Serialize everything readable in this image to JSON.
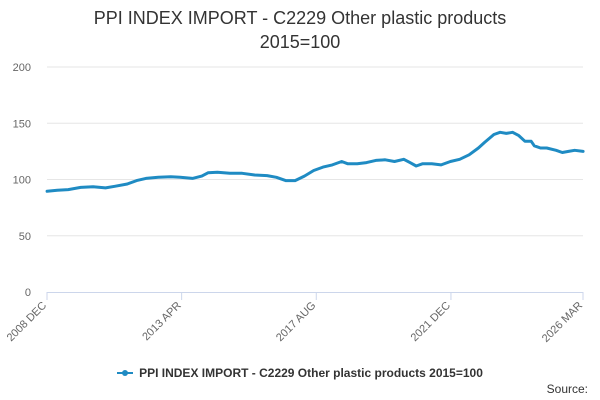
{
  "chart_data": {
    "type": "line",
    "title": "PPI INDEX IMPORT - C2229 Other plastic products",
    "subtitle": "2015=100",
    "xlabel": "",
    "ylabel": "",
    "x_tick_labels": [
      "2008 DEC",
      "2013 APR",
      "2017 AUG",
      "2021 DEC",
      "2026 MAR"
    ],
    "x_ticks": [
      2008.917,
      2013.25,
      2017.583,
      2021.917,
      2026.167
    ],
    "xlim": [
      2008.917,
      2026.167
    ],
    "ylim": [
      0,
      200
    ],
    "y_ticks": [
      0,
      50,
      100,
      150,
      200
    ],
    "grid": true,
    "legend_position": "bottom",
    "color": "#1f8bc3",
    "series": [
      {
        "name": "PPI INDEX IMPORT - C2229 Other plastic products 2015=100",
        "points": [
          [
            2008.92,
            89.5
          ],
          [
            2009.25,
            90.5
          ],
          [
            2009.6,
            91
          ],
          [
            2010.0,
            93
          ],
          [
            2010.4,
            93.5
          ],
          [
            2010.8,
            92.5
          ],
          [
            2011.1,
            94
          ],
          [
            2011.5,
            96
          ],
          [
            2011.8,
            99
          ],
          [
            2012.1,
            101
          ],
          [
            2012.5,
            102
          ],
          [
            2012.9,
            102.5
          ],
          [
            2013.2,
            102
          ],
          [
            2013.6,
            101
          ],
          [
            2013.9,
            103
          ],
          [
            2014.1,
            106
          ],
          [
            2014.4,
            106.5
          ],
          [
            2014.8,
            105.5
          ],
          [
            2015.2,
            105.5
          ],
          [
            2015.6,
            104
          ],
          [
            2016.0,
            103.5
          ],
          [
            2016.3,
            102
          ],
          [
            2016.6,
            99
          ],
          [
            2016.9,
            99
          ],
          [
            2017.2,
            103
          ],
          [
            2017.5,
            108
          ],
          [
            2017.8,
            111
          ],
          [
            2018.1,
            113
          ],
          [
            2018.4,
            116
          ],
          [
            2018.6,
            114
          ],
          [
            2018.9,
            114
          ],
          [
            2019.2,
            115
          ],
          [
            2019.5,
            117
          ],
          [
            2019.8,
            117.5
          ],
          [
            2020.1,
            116
          ],
          [
            2020.4,
            118
          ],
          [
            2020.6,
            115
          ],
          [
            2020.8,
            112
          ],
          [
            2021.0,
            114
          ],
          [
            2021.3,
            114
          ],
          [
            2021.6,
            113
          ],
          [
            2021.9,
            116
          ],
          [
            2022.2,
            118
          ],
          [
            2022.5,
            122
          ],
          [
            2022.8,
            128
          ],
          [
            2023.0,
            133
          ],
          [
            2023.3,
            140
          ],
          [
            2023.5,
            142
          ],
          [
            2023.7,
            141
          ],
          [
            2023.9,
            142
          ],
          [
            2024.1,
            139
          ],
          [
            2024.3,
            134
          ],
          [
            2024.5,
            134
          ],
          [
            2024.6,
            130
          ],
          [
            2024.8,
            128
          ],
          [
            2025.0,
            128
          ],
          [
            2025.3,
            126
          ],
          [
            2025.5,
            124
          ],
          [
            2025.7,
            125
          ],
          [
            2025.9,
            126
          ],
          [
            2026.17,
            125
          ]
        ]
      }
    ]
  },
  "source_label": "Source:"
}
